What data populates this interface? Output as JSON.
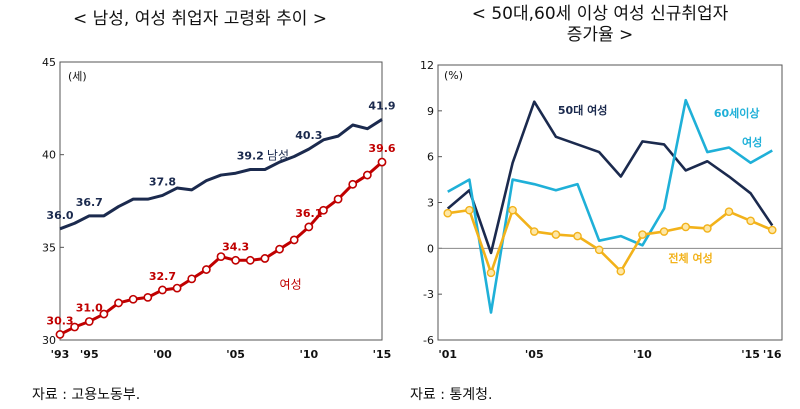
{
  "titles": {
    "left": "< 남성, 여성 취업자 고령화 추이 >",
    "right_line1": "< 50대,60세 이상 여성 신규취업자",
    "right_line2": "증가율 >"
  },
  "sources": {
    "left": "자료 : 고용노동부.",
    "right": "자료 : 통계청."
  },
  "colors": {
    "male": "#1b2a4e",
    "female": "#c00000",
    "fifties": "#1b2a4e",
    "sixties": "#1fb0d8",
    "total": "#f2b21a"
  },
  "chart_data": [
    {
      "type": "line",
      "title": "< 남성, 여성 취업자 고령화 추이 >",
      "ylabel": "(세)",
      "ylim": [
        30,
        45
      ],
      "yticks": [
        "30",
        "35",
        "40",
        "45"
      ],
      "x": [
        1993,
        1994,
        1995,
        1996,
        1997,
        1998,
        1999,
        2000,
        2001,
        2002,
        2003,
        2004,
        2005,
        2006,
        2007,
        2008,
        2009,
        2010,
        2011,
        2012,
        2013,
        2014,
        2015
      ],
      "xticks": [
        {
          "x": 1993,
          "label": "'93"
        },
        {
          "x": 1995,
          "label": "'95"
        },
        {
          "x": 2000,
          "label": "'00"
        },
        {
          "x": 2005,
          "label": "'05"
        },
        {
          "x": 2010,
          "label": "'10"
        },
        {
          "x": 2015,
          "label": "'15"
        }
      ],
      "series": [
        {
          "name": "남성",
          "values": [
            36.0,
            36.3,
            36.7,
            36.7,
            37.2,
            37.6,
            37.6,
            37.8,
            38.2,
            38.1,
            38.6,
            38.9,
            39.0,
            39.2,
            39.2,
            39.6,
            39.9,
            40.3,
            40.8,
            41.0,
            41.6,
            41.4,
            41.9
          ],
          "labels": [
            {
              "x": 1993,
              "text": "36.0"
            },
            {
              "x": 1995,
              "text": "36.7"
            },
            {
              "x": 2000,
              "text": "37.8"
            },
            {
              "x": 2006,
              "text": "39.2"
            },
            {
              "x": 2010,
              "text": "40.3"
            },
            {
              "x": 2015,
              "text": "41.9"
            }
          ]
        },
        {
          "name": "여성",
          "values": [
            30.3,
            30.7,
            31.0,
            31.4,
            32.0,
            32.2,
            32.3,
            32.7,
            32.8,
            33.3,
            33.8,
            34.5,
            34.3,
            34.3,
            34.4,
            34.9,
            35.4,
            36.1,
            37.0,
            37.6,
            38.4,
            38.9,
            39.6
          ],
          "labels": [
            {
              "x": 1993,
              "text": "30.3"
            },
            {
              "x": 1995,
              "text": "31.0"
            },
            {
              "x": 2000,
              "text": "32.7"
            },
            {
              "x": 2005,
              "text": "34.3"
            },
            {
              "x": 2010,
              "text": "36.1"
            },
            {
              "x": 2015,
              "text": "39.6"
            }
          ]
        }
      ]
    },
    {
      "type": "line",
      "title": "< 50대,60세 이상 여성 신규취업자 증가율 >",
      "ylabel": "(%)",
      "ylim": [
        -6,
        12
      ],
      "yticks": [
        "-6",
        "-3",
        "0",
        "3",
        "6",
        "9",
        "12"
      ],
      "x": [
        2001,
        2002,
        2003,
        2004,
        2005,
        2006,
        2007,
        2008,
        2009,
        2010,
        2011,
        2012,
        2013,
        2014,
        2015,
        2016
      ],
      "xticks": [
        {
          "x": 2001,
          "label": "'01"
        },
        {
          "x": 2005,
          "label": "'05"
        },
        {
          "x": 2010,
          "label": "'10"
        },
        {
          "x": 2015,
          "label": "'15"
        },
        {
          "x": 2016,
          "label": "'16"
        }
      ],
      "series": [
        {
          "name": "50대 여성",
          "values": [
            2.6,
            3.8,
            -0.3,
            5.6,
            9.6,
            7.3,
            6.8,
            6.3,
            4.7,
            7.0,
            6.8,
            5.1,
            5.7,
            4.7,
            3.6,
            1.5
          ]
        },
        {
          "name": "60세이상",
          "values": [
            3.7,
            4.5,
            -4.2,
            4.5,
            4.2,
            3.8,
            4.2,
            0.5,
            0.8,
            0.2,
            2.6,
            9.7,
            6.3,
            6.6,
            5.6,
            6.4
          ]
        },
        {
          "name": "전체 여성",
          "values": [
            2.3,
            2.5,
            -1.6,
            2.5,
            1.1,
            0.9,
            0.8,
            -0.1,
            -1.5,
            0.9,
            1.1,
            1.4,
            1.3,
            2.4,
            1.8,
            1.2
          ]
        }
      ]
    }
  ]
}
